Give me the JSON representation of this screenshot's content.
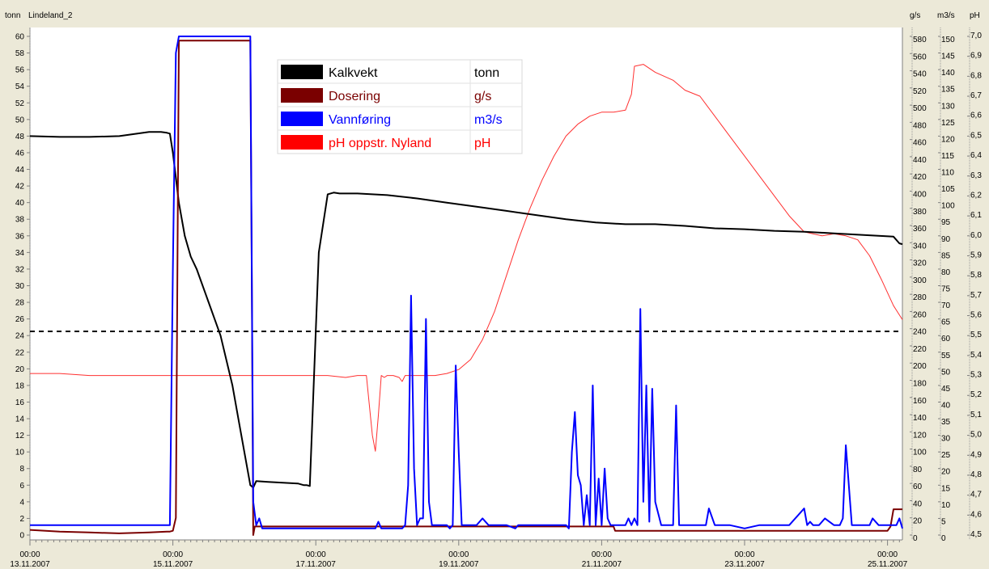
{
  "window": {
    "unit_label": "tonn",
    "title": "Lindeland_2"
  },
  "chart_data": {
    "type": "line",
    "x_start": "13.11.2007 00:00",
    "x_end": "25.11.2007 14:00",
    "x_time_unit": "hours since 13.11.2007 00:00",
    "x_ticks": [
      {
        "t": 0,
        "time": "00:00",
        "date": "13.11.2007"
      },
      {
        "t": 48,
        "time": "00:00",
        "date": "15.11.2007"
      },
      {
        "t": 96,
        "time": "00:00",
        "date": "17.11.2007"
      },
      {
        "t": 144,
        "time": "00:00",
        "date": "19.11.2007"
      },
      {
        "t": 192,
        "time": "00:00",
        "date": "21.11.2007"
      },
      {
        "t": 240,
        "time": "00:00",
        "date": "23.11.2007"
      },
      {
        "t": 288,
        "time": "00:00",
        "date": "25.11.2007"
      }
    ],
    "axes": [
      {
        "id": "tonn",
        "label": "tonn",
        "min": 0,
        "max": 60,
        "step": 2,
        "position": "left"
      },
      {
        "id": "gs",
        "label": "g/s",
        "min": 0,
        "max": 580,
        "step": 20,
        "position": "right"
      },
      {
        "id": "m3s",
        "label": "m3/s",
        "min": 0,
        "max": 150,
        "step": 5,
        "position": "right"
      },
      {
        "id": "ph",
        "label": "pH",
        "min": 4.5,
        "max": 7.0,
        "step": 0.1,
        "position": "right"
      }
    ],
    "reference_line": {
      "axis": "tonn",
      "value": 24.5,
      "style": "dashed"
    },
    "legend": [
      {
        "name": "Kalkvekt",
        "unit": "tonn",
        "color": "#000000"
      },
      {
        "name": "Dosering",
        "unit": "g/s",
        "color": "#7a0000"
      },
      {
        "name": "Vannføring",
        "unit": "m3/s",
        "color": "#0000ff"
      },
      {
        "name": "pH oppstr. Nyland",
        "unit": "pH",
        "color": "#ff0000"
      }
    ],
    "series": [
      {
        "name": "pH oppstr. Nyland",
        "axis": "ph",
        "color": "#ff3030",
        "width": 1,
        "x": [
          0,
          4,
          10,
          20,
          30,
          40,
          48,
          55,
          60,
          66,
          72,
          80,
          90,
          100,
          106,
          110,
          113,
          114,
          115,
          116,
          117,
          118,
          119,
          120,
          122,
          124,
          125,
          126,
          128,
          130,
          132,
          136,
          140,
          144,
          148,
          152,
          156,
          160,
          164,
          168,
          172,
          176,
          180,
          184,
          188,
          192,
          196,
          200,
          202,
          203,
          206,
          210,
          216,
          220,
          225,
          230,
          235,
          240,
          245,
          250,
          255,
          260,
          266,
          270,
          274,
          278,
          282,
          286,
          290,
          293
        ],
        "y": [
          5.31,
          5.31,
          5.31,
          5.3,
          5.3,
          5.3,
          5.3,
          5.3,
          5.3,
          5.3,
          5.3,
          5.3,
          5.3,
          5.3,
          5.29,
          5.3,
          5.3,
          5.15,
          5.0,
          4.92,
          5.1,
          5.3,
          5.29,
          5.3,
          5.3,
          5.29,
          5.27,
          5.3,
          5.3,
          5.3,
          5.3,
          5.3,
          5.31,
          5.33,
          5.38,
          5.48,
          5.62,
          5.8,
          5.98,
          6.14,
          6.28,
          6.4,
          6.5,
          6.56,
          6.6,
          6.62,
          6.62,
          6.63,
          6.71,
          6.85,
          6.86,
          6.82,
          6.78,
          6.73,
          6.7,
          6.6,
          6.5,
          6.4,
          6.3,
          6.2,
          6.1,
          6.02,
          6.0,
          6.01,
          6.0,
          5.98,
          5.9,
          5.78,
          5.65,
          5.58
        ]
      },
      {
        "name": "Kalkvekt",
        "axis": "tonn",
        "color": "#000000",
        "width": 2,
        "x": [
          0,
          10,
          20,
          30,
          40,
          44,
          46,
          47,
          48,
          49,
          50,
          52,
          54,
          56,
          60,
          64,
          68,
          70,
          72,
          74,
          75,
          76,
          80,
          90,
          92,
          93,
          94,
          97,
          100,
          102,
          104,
          110,
          120,
          130,
          140,
          150,
          160,
          170,
          180,
          190,
          200,
          210,
          220,
          230,
          240,
          250,
          260,
          270,
          280,
          290,
          292,
          293
        ],
        "y": [
          48.0,
          47.9,
          47.9,
          48.0,
          48.5,
          48.5,
          48.4,
          48.3,
          46.0,
          43.0,
          40.0,
          36.0,
          33.5,
          32.0,
          28.0,
          24.0,
          18.0,
          14.0,
          10.0,
          6.0,
          5.7,
          6.5,
          6.4,
          6.2,
          6.0,
          6.0,
          5.9,
          34.0,
          41.0,
          41.2,
          41.1,
          41.1,
          40.9,
          40.5,
          40.0,
          39.5,
          39.0,
          38.5,
          38.0,
          37.6,
          37.4,
          37.4,
          37.2,
          36.9,
          36.8,
          36.6,
          36.5,
          36.3,
          36.1,
          35.9,
          35.1,
          35.0
        ]
      },
      {
        "name": "Dosering",
        "axis": "gs",
        "color": "#7a0000",
        "width": 2,
        "x": [
          0,
          10,
          20,
          30,
          40,
          46,
          47,
          48,
          49,
          50,
          55,
          60,
          65,
          70,
          74,
          74.5,
          75,
          75.5,
          76,
          80,
          90,
          100,
          120,
          140,
          160,
          180,
          196,
          196.5,
          200,
          220,
          240,
          260,
          280,
          288,
          289,
          290,
          293
        ],
        "y": [
          6,
          4,
          3,
          2,
          3,
          4,
          4,
          5,
          20,
          575,
          575,
          575,
          575,
          575,
          575,
          300,
          0,
          10,
          10,
          10,
          10,
          10,
          10,
          10,
          10,
          10,
          10,
          5,
          5,
          5,
          5,
          5,
          5,
          5,
          10,
          30,
          30
        ]
      },
      {
        "name": "Vannføring",
        "axis": "m3s",
        "color": "#0000ff",
        "width": 2,
        "x": [
          0,
          20,
          44,
          47,
          48,
          49,
          50,
          52,
          74,
          75,
          76,
          77,
          78,
          80,
          100,
          116,
          117,
          118,
          125,
          126,
          127,
          128,
          129,
          130,
          131,
          132,
          133,
          134,
          135,
          136,
          137,
          138,
          139,
          140,
          141,
          142,
          143,
          144,
          145,
          146,
          147,
          148,
          150,
          152,
          154,
          156,
          160,
          163,
          164,
          165,
          170,
          175,
          180,
          181,
          182,
          183,
          184,
          185,
          186,
          187,
          188,
          189,
          190,
          191,
          192,
          193,
          194,
          195,
          196,
          197,
          198,
          199,
          200,
          201,
          202,
          203,
          204,
          205,
          206,
          207,
          208,
          209,
          210,
          212,
          213,
          214,
          215,
          216,
          217,
          218,
          220,
          225,
          226,
          227,
          228,
          230,
          235,
          240,
          245,
          250,
          255,
          260,
          261,
          262,
          263,
          265,
          267,
          270,
          272,
          273,
          274,
          276,
          278,
          280,
          281,
          282,
          283,
          285,
          290,
          291,
          292,
          293
        ],
        "y": [
          3,
          3,
          3,
          3,
          80,
          145,
          150,
          150,
          150,
          10,
          3,
          5,
          2,
          2,
          2,
          2,
          4,
          2,
          2,
          3,
          15,
          72,
          20,
          3,
          5,
          5,
          65,
          10,
          3,
          3,
          3,
          3,
          3,
          3,
          2,
          3,
          51,
          25,
          3,
          3,
          3,
          3,
          3,
          5,
          3,
          3,
          3,
          2,
          3,
          3,
          3,
          3,
          3,
          2,
          25,
          37,
          18,
          15,
          3,
          12,
          3,
          45,
          3,
          17,
          3,
          20,
          5,
          3,
          3,
          3,
          3,
          3,
          3,
          5,
          3,
          5,
          3,
          68,
          10,
          45,
          4,
          44,
          10,
          3,
          3,
          3,
          3,
          3,
          39,
          3,
          3,
          3,
          3,
          3,
          8,
          3,
          3,
          2,
          3,
          3,
          3,
          8,
          3,
          4,
          3,
          3,
          5,
          3,
          3,
          5,
          27,
          3,
          3,
          3,
          3,
          3,
          5,
          3,
          3,
          3,
          5,
          2
        ]
      }
    ]
  }
}
